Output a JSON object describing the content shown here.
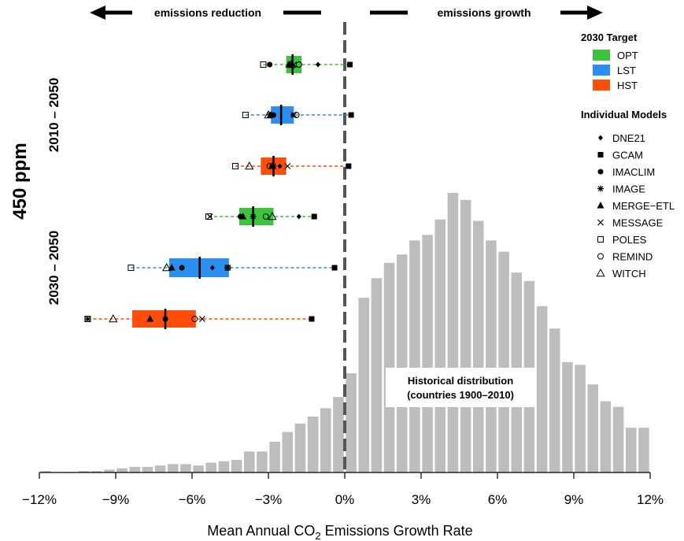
{
  "chart_data": {
    "type": "bar",
    "xlabel": "Mean Annual CO₂ Emissions Growth Rate",
    "xlim": [
      -12,
      12
    ],
    "x_ticks": [
      "−12%",
      "−9%",
      "−6%",
      "−3%",
      "0%",
      "3%",
      "6%",
      "9%",
      "12%"
    ],
    "x_tick_values": [
      -12,
      -9,
      -6,
      -3,
      0,
      3,
      6,
      9,
      12
    ],
    "reduction_label": "emissions reduction",
    "growth_label": "emissions growth",
    "scenario_label": "450 ppm",
    "period_labels": [
      "2010 – 2050",
      "2030 – 2050"
    ],
    "legend_target_title": "2030 Target",
    "legend_models_title": "Individual Models",
    "targets": [
      {
        "name": "OPT",
        "color": "#3dc43d"
      },
      {
        "name": "LST",
        "color": "#2a8fef"
      },
      {
        "name": "HST",
        "color": "#ff4d0a"
      }
    ],
    "models": [
      {
        "name": "DNE21",
        "symbol": "diamond"
      },
      {
        "name": "GCAM",
        "symbol": "square"
      },
      {
        "name": "IMACLIM",
        "symbol": "circle"
      },
      {
        "name": "IMAGE",
        "symbol": "asterisk"
      },
      {
        "name": "MERGE−ETL",
        "symbol": "triangle"
      },
      {
        "name": "MESSAGE",
        "symbol": "x"
      },
      {
        "name": "POLES",
        "symbol": "open-square"
      },
      {
        "name": "REMIND",
        "symbol": "open-circle"
      },
      {
        "name": "WITCH",
        "symbol": "open-triangle"
      }
    ],
    "historical_label_line1": "Historical distribution",
    "historical_label_line2": "(countries 1900–2010)",
    "histogram": {
      "bin_width": 0.5,
      "bins_start": [
        -12,
        -11.5,
        -11,
        -10.5,
        -10,
        -9.5,
        -9,
        -8.5,
        -8,
        -7.5,
        -7,
        -6.5,
        -6,
        -5.5,
        -5,
        -4.5,
        -4,
        -3.5,
        -3,
        -2.5,
        -2,
        -1.5,
        -1,
        -0.5,
        0,
        0.5,
        1,
        1.5,
        2,
        2.5,
        3,
        3.5,
        4,
        4.5,
        5,
        5.5,
        6,
        6.5,
        7,
        7.5,
        8,
        8.5,
        9,
        9.5,
        10,
        10.5,
        11,
        11.5
      ],
      "relative_heights": [
        0.5,
        0,
        0,
        0.5,
        0.5,
        1,
        1.5,
        2,
        2,
        2.5,
        3,
        3,
        2.5,
        3.5,
        4,
        4.5,
        7.5,
        7.5,
        11,
        14.5,
        17.5,
        20,
        23,
        27,
        35.5,
        62.5,
        69.5,
        75,
        78,
        83,
        85,
        90.5,
        100,
        97.5,
        90,
        83,
        79,
        71.5,
        68.5,
        59.5,
        51.5,
        39.5,
        38.5,
        31.5,
        25.5,
        23.5,
        16,
        16
      ]
    },
    "boxes": [
      {
        "period": "2010 – 2050",
        "target": "OPT",
        "whisker_min": -3.2,
        "q1": -2.3,
        "median": -2.05,
        "q3": -1.7,
        "whisker_max": 0.2,
        "models": {
          "DNE21": -1.05,
          "GCAM": 0.2,
          "IMACLIM": -2.95,
          "IMAGE": -2.15,
          "MERGE−ETL": -2.2,
          "MESSAGE": -2.0,
          "POLES": -3.2,
          "REMIND": -1.8,
          "WITCH": -2.1
        }
      },
      {
        "period": "2010 – 2050",
        "target": "LST",
        "whisker_min": -3.9,
        "q1": -2.9,
        "median": -2.5,
        "q3": -2.0,
        "whisker_max": 0.25,
        "models": {
          "DNE21": -2.05,
          "GCAM": 0.25,
          "IMACLIM": -2.8,
          "IMAGE": -2.95,
          "MERGE−ETL": -2.9,
          "MESSAGE": -2.0,
          "POLES": -3.9,
          "REMIND": -1.9,
          "WITCH": -3.0
        }
      },
      {
        "period": "2010 – 2050",
        "target": "HST",
        "whisker_min": -4.3,
        "q1": -3.3,
        "median": -2.8,
        "q3": -2.3,
        "whisker_max": 0.15,
        "models": {
          "DNE21": -2.55,
          "GCAM": 0.15,
          "IMACLIM": -2.85,
          "IMAGE": -2.8,
          "MERGE−ETL": -2.85,
          "MESSAGE": -2.25,
          "POLES": -4.3,
          "REMIND": -2.95,
          "WITCH": -3.75
        }
      },
      {
        "period": "2030 – 2050",
        "target": "OPT",
        "whisker_min": -5.35,
        "q1": -4.15,
        "median": -3.6,
        "q3": -2.8,
        "whisker_max": -1.2,
        "models": {
          "DNE21": -1.8,
          "GCAM": -1.2,
          "IMACLIM": -4.1,
          "IMAGE": -3.6,
          "MERGE−ETL": -4.0,
          "MESSAGE": -5.3,
          "POLES": -5.35,
          "REMIND": -3.1,
          "WITCH": -2.85
        }
      },
      {
        "period": "2030 – 2050",
        "target": "LST",
        "whisker_min": -8.4,
        "q1": -6.9,
        "median": -5.7,
        "q3": -4.55,
        "whisker_max": -0.4,
        "models": {
          "DNE21": -5.2,
          "GCAM": -0.4,
          "IMACLIM": -6.4,
          "IMAGE": -4.6,
          "MERGE−ETL": -6.8,
          "MESSAGE": -4.6,
          "POLES": -8.4,
          "REMIND": -4.6,
          "WITCH": -7.0
        }
      },
      {
        "period": "2030 – 2050",
        "target": "HST",
        "whisker_min": -10.1,
        "q1": -8.35,
        "median": -7.05,
        "q3": -5.85,
        "whisker_max": -1.3,
        "models": {
          "DNE21": -7.05,
          "GCAM": -1.3,
          "IMACLIM": -7.05,
          "IMAGE": -10.1,
          "MERGE−ETL": -7.65,
          "MESSAGE": -5.6,
          "POLES": -10.1,
          "REMIND": -5.9,
          "WITCH": -9.1
        }
      }
    ]
  }
}
